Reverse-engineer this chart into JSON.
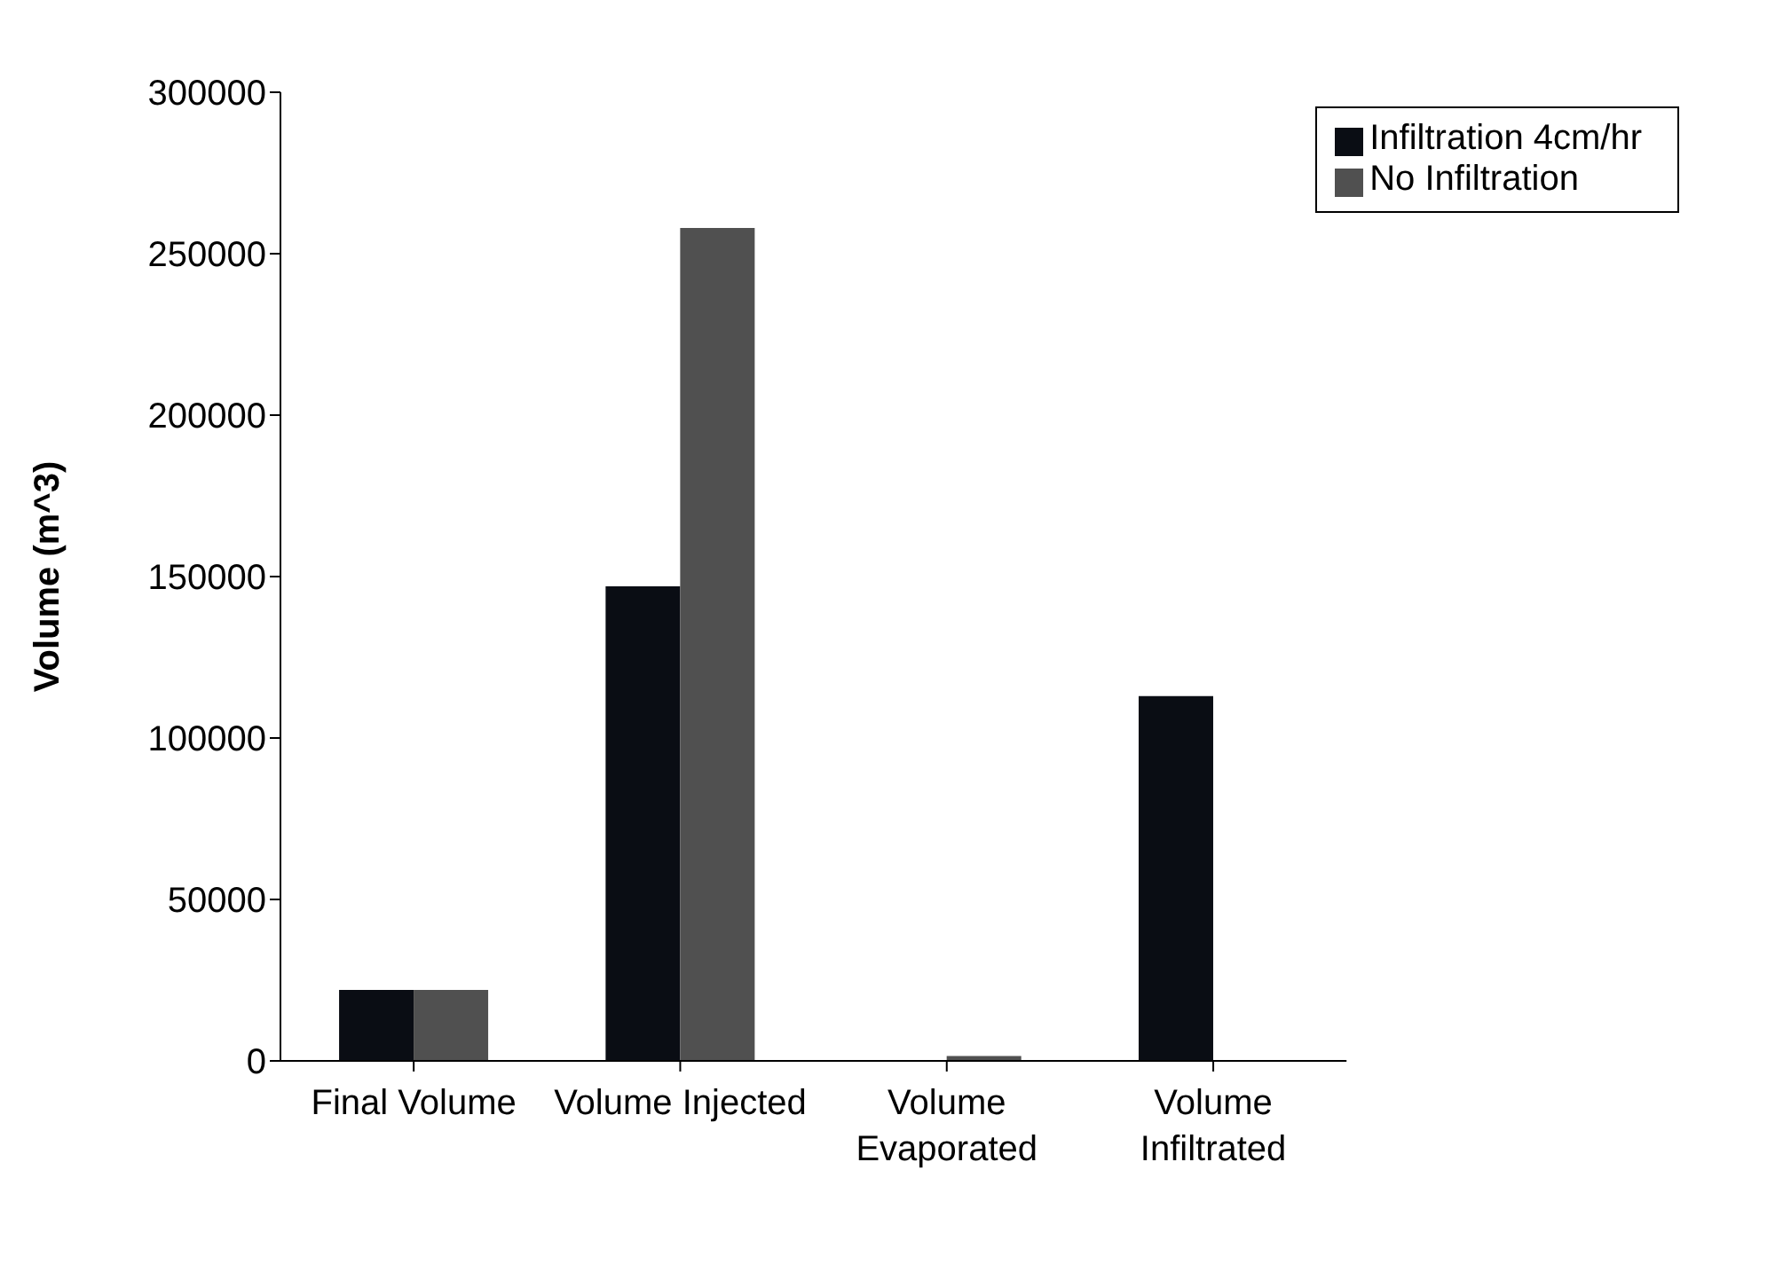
{
  "chart_data": {
    "type": "bar",
    "ylabel": "Volume (m^3)",
    "categories": [
      "Final Volume",
      "Volume Injected",
      "Volume\nEvaporated",
      "Volume\nInfiltrated"
    ],
    "series": [
      {
        "name": "Infiltration 4cm/hr",
        "color": "#0a0d14",
        "values": [
          22000,
          147000,
          0,
          113000
        ]
      },
      {
        "name": "No Infiltration",
        "color": "#505050",
        "values": [
          22000,
          258000,
          1500,
          0
        ]
      }
    ],
    "ylim": [
      0,
      300000
    ],
    "yticks": [
      0,
      50000,
      100000,
      150000,
      200000,
      250000,
      300000
    ],
    "grid": false,
    "legend": "top right"
  }
}
